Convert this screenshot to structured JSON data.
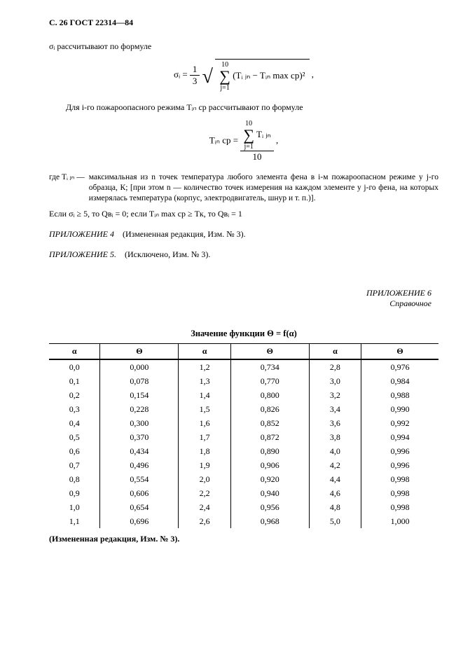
{
  "header": "С. 26 ГОСТ 22314—84",
  "line1": "σᵢ рассчитывают по формуле",
  "formula1": {
    "eq_left": "σᵢ = ",
    "frac_num": "1",
    "frac_den": "3",
    "sum_top": "10",
    "sum_bot": "j=1",
    "expr": "(Tᵢ ⱼₙ − Tᵢₙ max ср)²",
    "trail": " ,"
  },
  "line2": "Для i-го пожароопасного режима Tᵢₙ ср рассчитывают по формуле",
  "formula2": {
    "eq_left": "Tᵢₙ ср = ",
    "sum_top": "10",
    "sum_bot": "j=1",
    "sum_expr": "Tᵢ ⱼₙ",
    "den": "10",
    "trail": " ,"
  },
  "where": {
    "label": "где Tᵢ ⱼₙ —",
    "text": "максимальная из n точек температура любого элемента фена в i-м пожароопасном режиме у j-го образца, К; [при этом n — количество точек измерения на каждом элементе у j-го фена, на которых измерялась температура (корпус, электродвигатель, шнур и т. п.)]."
  },
  "cond_line": "Если σᵢ ≥ 5, то Qвᵢ = 0;  если Tᵢₙ max ср ≥ Tк, то Qвᵢ = 1",
  "app4": {
    "title": "ПРИЛОЖЕНИЕ 4",
    "note": "(Измененная редакция, Изм. № 3)."
  },
  "app5": {
    "title": "ПРИЛОЖЕНИЕ 5.",
    "note": "(Исключено, Изм. № 3)."
  },
  "app6": {
    "title": "ПРИЛОЖЕНИЕ 6",
    "subtitle": "Справочное"
  },
  "table": {
    "title": "Значение функции Θ = f(α)",
    "headers": [
      "α",
      "Θ",
      "α",
      "Θ",
      "α",
      "Θ"
    ],
    "rows": [
      [
        "0,0",
        "0,000",
        "1,2",
        "0,734",
        "2,8",
        "0,976"
      ],
      [
        "0,1",
        "0,078",
        "1,3",
        "0,770",
        "3,0",
        "0,984"
      ],
      [
        "0,2",
        "0,154",
        "1,4",
        "0,800",
        "3,2",
        "0,988"
      ],
      [
        "0,3",
        "0,228",
        "1,5",
        "0,826",
        "3,4",
        "0,990"
      ],
      [
        "0,4",
        "0,300",
        "1,6",
        "0,852",
        "3,6",
        "0,992"
      ],
      [
        "0,5",
        "0,370",
        "1,7",
        "0,872",
        "3,8",
        "0,994"
      ],
      [
        "0,6",
        "0,434",
        "1,8",
        "0,890",
        "4,0",
        "0,996"
      ],
      [
        "0,7",
        "0,496",
        "1,9",
        "0,906",
        "4,2",
        "0,996"
      ],
      [
        "0,8",
        "0,554",
        "2,0",
        "0,920",
        "4,4",
        "0,998"
      ],
      [
        "0,9",
        "0,606",
        "2,2",
        "0,940",
        "4,6",
        "0,998"
      ],
      [
        "1,0",
        "0,654",
        "2,4",
        "0,956",
        "4,8",
        "0,998"
      ],
      [
        "1,1",
        "0,696",
        "2,6",
        "0,968",
        "5,0",
        "1,000"
      ]
    ]
  },
  "caption_changed": "(Измененная редакция, Изм. № 3)."
}
